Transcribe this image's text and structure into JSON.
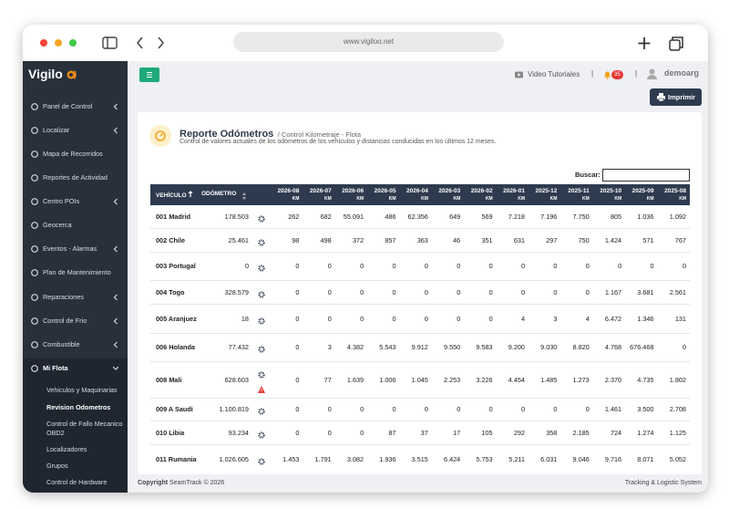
{
  "browser": {
    "url": "www.vigiloo.net"
  },
  "sidebar": {
    "logo": "Vigilo",
    "menu": [
      {
        "label": "Panel de Control",
        "has_children": true
      },
      {
        "label": "Localizar",
        "has_children": true
      },
      {
        "label": "Mapa de Recorridos",
        "has_children": false
      },
      {
        "label": "Reportes de Actividad",
        "has_children": false
      },
      {
        "label": "Centro POIs",
        "has_children": true
      },
      {
        "label": "Geocerca",
        "has_children": false
      },
      {
        "label": "Eventos - Alarmas",
        "has_children": true
      },
      {
        "label": "Plan de Mantenimiento",
        "has_children": false
      },
      {
        "label": "Reparaciones",
        "has_children": true
      },
      {
        "label": "Control de Frio",
        "has_children": true
      },
      {
        "label": "Combustible",
        "has_children": true
      },
      {
        "label": "Mi Flota",
        "has_children": true,
        "active": true
      }
    ],
    "submenu": [
      {
        "label": "Vehiculos y Maquinarias"
      },
      {
        "label": "Revision Odometros",
        "active": true
      },
      {
        "label": "Control de Fallo Mecanico OBD2"
      },
      {
        "label": "Localizadores"
      },
      {
        "label": "Grupos"
      },
      {
        "label": "Control de Hardware"
      }
    ]
  },
  "topbar": {
    "video": "Video Tutoriales",
    "badge": "35",
    "user": "demoarg"
  },
  "print_button": "Imprimir",
  "report": {
    "title": "Reporte Odómetros",
    "breadcrumb": "/ Control Kilometraje - Flota",
    "description": "Control de valores actuales de los odómetros de los vehículos y distancias conducidas en los últimos 12 meses.",
    "search_label": "Buscar:"
  },
  "table": {
    "headers": {
      "vehicle": "VEHÍCULO",
      "odometer": "ODÓMETRO"
    },
    "months": [
      "2026-08",
      "2026-07",
      "2026-06",
      "2026-05",
      "2026-04",
      "2026-03",
      "2026-02",
      "2026-01",
      "2025-12",
      "2025-11",
      "2025-10",
      "2025-09",
      "2025-08"
    ],
    "unit": "KM",
    "rows": [
      {
        "vehicle": "001 Madrid",
        "odometer": "178.503",
        "km": [
          "262",
          "682",
          "55.091",
          "486",
          "62.356",
          "649",
          "569",
          "7.218",
          "7.196",
          "7.750",
          "805",
          "1.036",
          "1.092"
        ]
      },
      {
        "vehicle": "002 Chile",
        "odometer": "25.461",
        "km": [
          "98",
          "498",
          "372",
          "857",
          "363",
          "46",
          "351",
          "631",
          "297",
          "750",
          "1.424",
          "571",
          "767"
        ]
      },
      {
        "vehicle": "003 Portugal",
        "odometer": "0",
        "km": [
          "0",
          "0",
          "0",
          "0",
          "0",
          "0",
          "0",
          "0",
          "0",
          "0",
          "0",
          "0",
          "0"
        ]
      },
      {
        "vehicle": "004 Togo",
        "odometer": "328.579",
        "km": [
          "0",
          "0",
          "0",
          "0",
          "0",
          "0",
          "0",
          "0",
          "0",
          "0",
          "1.167",
          "3.681",
          "2.561"
        ]
      },
      {
        "vehicle": "005 Aranjuez",
        "odometer": "18",
        "km": [
          "0",
          "0",
          "0",
          "0",
          "0",
          "0",
          "0",
          "4",
          "3",
          "4",
          "6.472",
          "1.346",
          "131"
        ]
      },
      {
        "vehicle": "006 Holanda",
        "odometer": "77.432",
        "km": [
          "0",
          "3",
          "4.382",
          "5.543",
          "9.912",
          "9.550",
          "9.583",
          "9.200",
          "9.030",
          "8.820",
          "4.768",
          "676.468",
          "0"
        ]
      },
      {
        "vehicle": "008 Mali",
        "odometer": "628.603",
        "warning": true,
        "km": [
          "0",
          "77",
          "1.639",
          "1.006",
          "1.045",
          "2.253",
          "3.226",
          "4.454",
          "1.485",
          "1.273",
          "2.370",
          "4.735",
          "1.802"
        ]
      },
      {
        "vehicle": "009 A Saudi",
        "odometer": "1.100.819",
        "km": [
          "0",
          "0",
          "0",
          "0",
          "0",
          "0",
          "0",
          "0",
          "0",
          "0",
          "1.461",
          "3.500",
          "2.708"
        ]
      },
      {
        "vehicle": "010 Libia",
        "odometer": "93.234",
        "km": [
          "0",
          "0",
          "0",
          "87",
          "37",
          "17",
          "105",
          "292",
          "358",
          "2.185",
          "724",
          "1.274",
          "1.125"
        ]
      },
      {
        "vehicle": "011 Rumania",
        "odometer": "1.026.605",
        "km": [
          "1.453",
          "1.791",
          "3.082",
          "1.936",
          "3.515",
          "6.424",
          "5.753",
          "5.211",
          "6.031",
          "9.046",
          "9.716",
          "8.071",
          "5.052"
        ]
      }
    ]
  },
  "footer": {
    "copyright": "Copyright",
    "brand": "SeamTrack © 2026",
    "system": "Tracking & Logistic System"
  }
}
